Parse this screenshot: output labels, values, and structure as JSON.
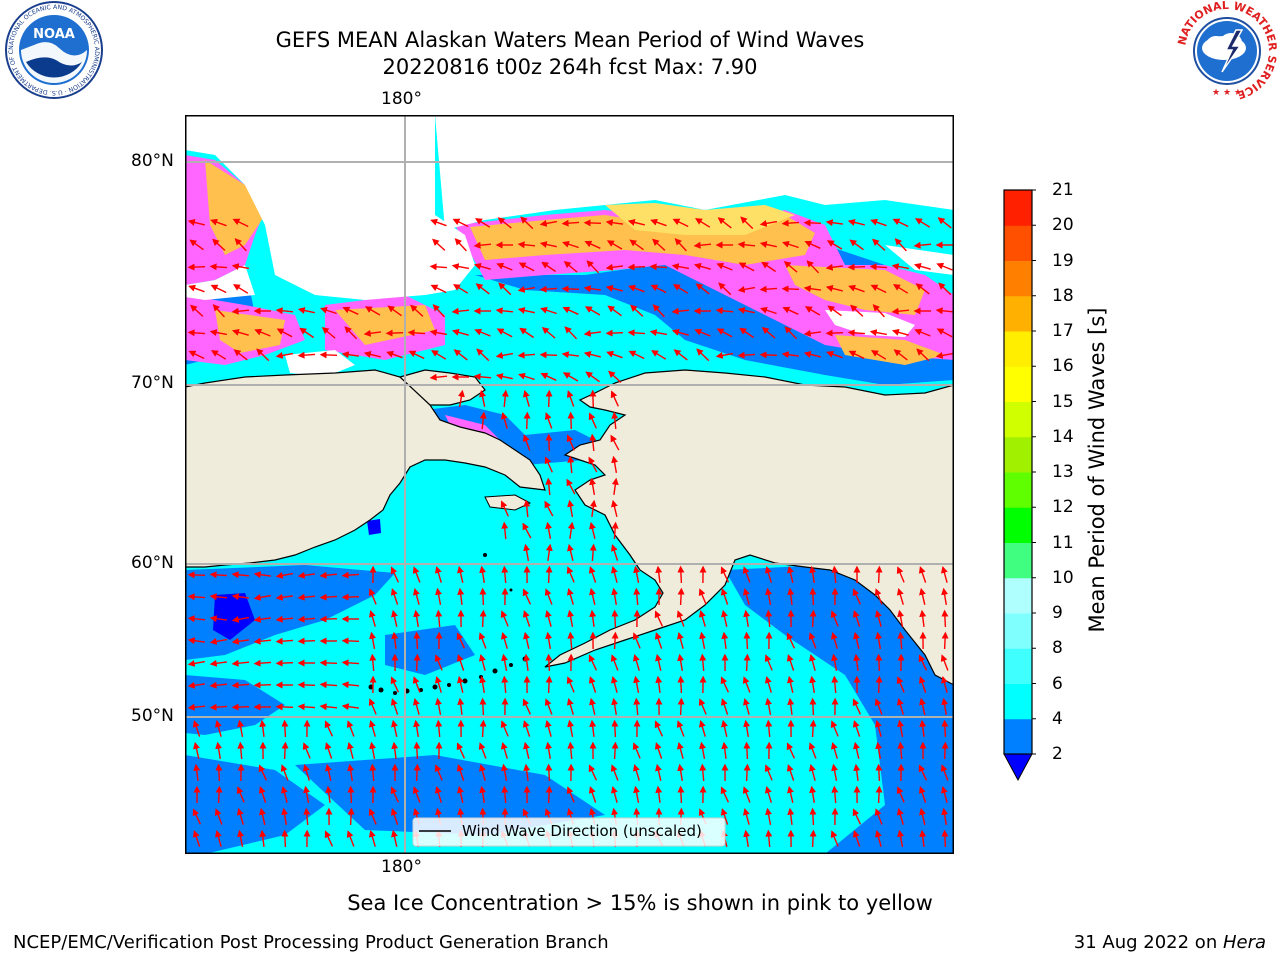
{
  "title": {
    "line1": "GEFS MEAN Alaskan Waters Mean Period of Wind Waves",
    "line2": "20220816 t00z 264h fcst   Max: 7.90"
  },
  "logos": {
    "left": {
      "name": "noaa-logo",
      "text": "NOAA",
      "ring_text": "NATIONAL OCEANIC AND ATMOSPHERIC ADMINISTRATION · U.S. DEPARTMENT OF COMMERCE"
    },
    "right": {
      "name": "nws-logo",
      "ring_text": "NATIONAL WEATHER SERVICE"
    }
  },
  "map": {
    "lon_labels": {
      "top": "180°",
      "bottom": "180°"
    },
    "lat_labels": [
      "80°N",
      "70°N",
      "60°N",
      "50°N"
    ],
    "legend": {
      "label": "Wind Wave Direction (unscaled)"
    },
    "colors": {
      "ocean_4_6": "#00ffff",
      "ocean_2_4": "#0080ff",
      "ocean_lt2": "#0000ff",
      "land": "#efecdc",
      "ice_pink": "#ff66ff",
      "ice_orange": "#ffc04d",
      "ice_yellow": "#ffe066",
      "arrows": "#ff0000",
      "gridlines": "#b0b0b0"
    }
  },
  "colorbar": {
    "label": "Mean Period of Wind Waves [s]",
    "ticks": [
      "2",
      "4",
      "6",
      "8",
      "9",
      "10",
      "11",
      "12",
      "13",
      "14",
      "15",
      "16",
      "17",
      "18",
      "19",
      "20",
      "21"
    ],
    "colors": [
      "#0080ff",
      "#00ffff",
      "#40ffff",
      "#80ffff",
      "#b0ffff",
      "#40ff80",
      "#00ff00",
      "#60ff00",
      "#a0f000",
      "#d0ff00",
      "#ffff00",
      "#ffee00",
      "#ffb000",
      "#ff8000",
      "#ff5000",
      "#ff2000",
      "#ff0000"
    ],
    "extend_color": "#0000ff"
  },
  "footer": {
    "note": "Sea Ice Concentration > 15% is shown in pink to yellow",
    "left": "NCEP/EMC/Verification Post Processing Product Generation Branch",
    "right_date": "31 Aug 2022 on ",
    "right_machine": "Hera"
  }
}
